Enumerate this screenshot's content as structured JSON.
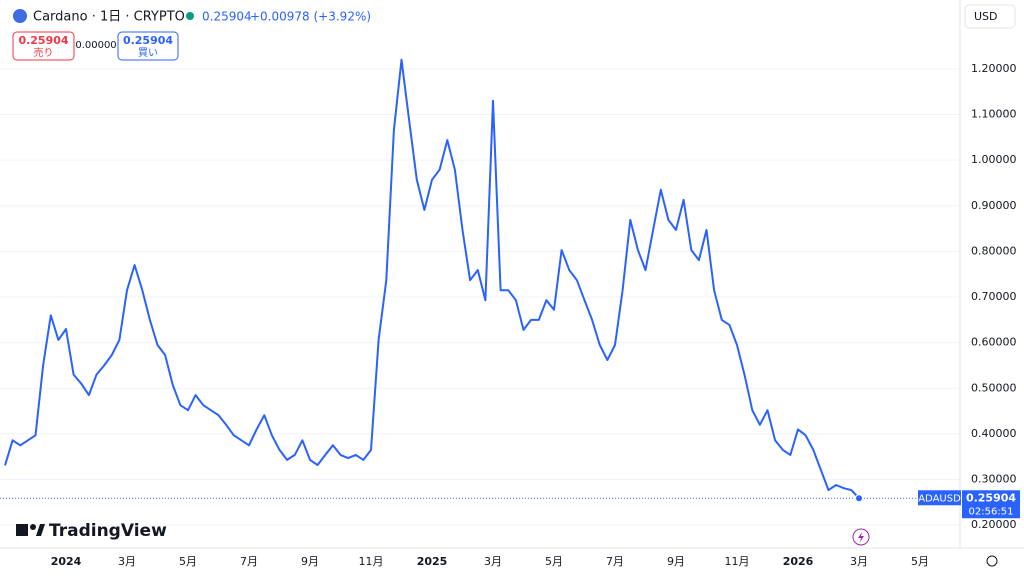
{
  "header": {
    "symbol": "Cardano · 1日 · CRYPTO",
    "price": "0.25904",
    "change": "+0.00978 (+3.92%)",
    "currency": "USD"
  },
  "trade": {
    "sell_price": "0.25904",
    "sell_label": "売り",
    "spread": "0.00000",
    "buy_price": "0.25904",
    "buy_label": "買い"
  },
  "branding": "TradingView",
  "chart_data": {
    "type": "line",
    "categories": [
      null,
      null,
      null,
      null,
      null,
      null,
      null,
      null,
      "2024",
      null,
      null,
      null,
      null,
      null,
      null,
      null,
      "3月",
      null,
      null,
      null,
      null,
      null,
      null,
      null,
      "5月",
      null,
      null,
      null,
      null,
      null,
      null,
      null,
      "7月",
      null,
      null,
      null,
      null,
      null,
      null,
      null,
      "9月",
      null,
      null,
      null,
      null,
      null,
      null,
      null,
      "11月",
      null,
      null,
      null,
      null,
      null,
      null,
      null,
      "2025",
      null,
      null,
      null,
      null,
      null,
      null,
      null,
      "3月",
      null,
      null,
      null,
      null,
      null,
      null,
      null,
      "5月",
      null,
      null,
      null,
      null,
      null,
      null,
      null,
      "7月",
      null,
      null,
      null,
      null,
      null,
      null,
      null,
      "9月",
      null,
      null,
      null,
      null,
      null,
      null,
      null,
      "11月",
      null,
      null,
      null,
      null,
      null,
      null,
      null,
      "2026",
      null,
      null,
      null,
      null,
      null,
      null,
      null,
      "3月",
      null,
      null,
      null,
      null,
      null,
      null,
      null,
      "5月",
      null,
      null,
      null,
      null,
      null
    ],
    "series": [
      {
        "name": "ADAUSD",
        "color": "#2962ff",
        "values": [
          0.331,
          0.386,
          0.375,
          0.386,
          0.397,
          0.55,
          0.66,
          0.606,
          0.63,
          0.53,
          0.51,
          0.485,
          0.53,
          0.55,
          0.573,
          0.606,
          0.715,
          0.77,
          0.715,
          0.65,
          0.595,
          0.573,
          0.507,
          0.463,
          0.452,
          0.485,
          0.463,
          0.452,
          0.441,
          0.42,
          0.397,
          0.386,
          0.375,
          0.41,
          0.441,
          0.397,
          0.365,
          0.343,
          0.354,
          0.386,
          0.343,
          0.332,
          0.354,
          0.375,
          0.354,
          0.347,
          0.354,
          0.343,
          0.365,
          0.606,
          0.737,
          1.066,
          1.22,
          1.088,
          0.957,
          0.891,
          0.957,
          0.979,
          1.044,
          0.979,
          0.847,
          0.737,
          0.759,
          0.693,
          1.13,
          0.715,
          0.715,
          0.693,
          0.628,
          0.65,
          0.65,
          0.693,
          0.672,
          0.803,
          0.759,
          0.737,
          0.693,
          0.65,
          0.595,
          0.562,
          0.595,
          0.715,
          0.869,
          0.803,
          0.759,
          0.847,
          0.935,
          0.869,
          0.847,
          0.913,
          0.803,
          0.781,
          0.847,
          0.715,
          0.65,
          0.639,
          0.595,
          0.529,
          0.452,
          0.42,
          0.452,
          0.386,
          0.365,
          0.354,
          0.41,
          0.397,
          0.365,
          0.321,
          0.277,
          0.288,
          0.281,
          0.277,
          0.259,
          null,
          null,
          null,
          null,
          null,
          null,
          null,
          null,
          null,
          null,
          null,
          null,
          null
        ]
      }
    ],
    "ylim": [
      0.15,
      1.351
    ],
    "yticks": [
      {
        "value": 0.2,
        "label": "0.20000"
      },
      {
        "value": 0.3,
        "label": "0.30000"
      },
      {
        "value": 0.4,
        "label": "0.40000"
      },
      {
        "value": 0.5,
        "label": "0.50000"
      },
      {
        "value": 0.6,
        "label": "0.60000"
      },
      {
        "value": 0.7,
        "label": "0.70000"
      },
      {
        "value": 0.8,
        "label": "0.80000"
      },
      {
        "value": 0.9,
        "label": "0.90000"
      },
      {
        "value": 1.0,
        "label": "1.00000"
      },
      {
        "value": 1.1,
        "label": "1.10000"
      },
      {
        "value": 1.2,
        "label": "1.20000"
      }
    ],
    "grid": true,
    "last_price_label": "0.25904",
    "countdown": "02:56:51"
  }
}
